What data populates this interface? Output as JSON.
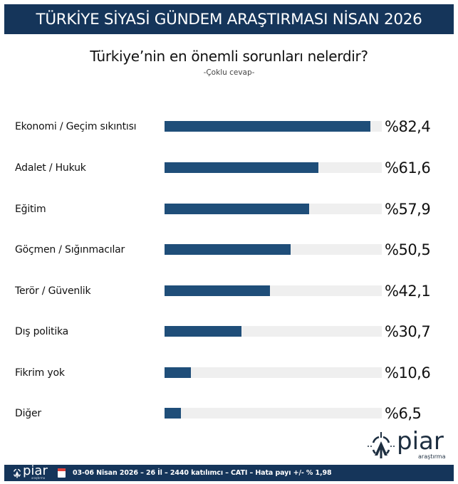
{
  "header": {
    "title": "TÜRKİYE SİYASİ GÜNDEM ARAŞTIRMASI NİSAN 2026"
  },
  "question": {
    "title": "Türkiye’nin en önemli sorunları nelerdir?",
    "subtitle": "-Çoklu cevap-"
  },
  "colors": {
    "header_bg": "#15355a",
    "bar": "#1f4e79",
    "track": "#efefef"
  },
  "rows": [
    {
      "label": "Ekonomi / Geçim sıkıntısı",
      "value": 82.4,
      "display": "%82,4"
    },
    {
      "label": "Adalet / Hukuk",
      "value": 61.6,
      "display": "%61,6"
    },
    {
      "label": "Eğitim",
      "value": 57.9,
      "display": "%57,9"
    },
    {
      "label": "Göçmen / Sığınmacılar",
      "value": 50.5,
      "display": "%50,5"
    },
    {
      "label": "Terör / Güvenlik",
      "value": 42.1,
      "display": "%42,1"
    },
    {
      "label": "Dış politika",
      "value": 30.7,
      "display": "%30,7"
    },
    {
      "label": "Fikrim yok",
      "value": 10.6,
      "display": "%10,6"
    },
    {
      "label": "Diğer",
      "value": 6.5,
      "display": "%6,5"
    }
  ],
  "chart_data": {
    "type": "bar",
    "orientation": "horizontal",
    "title": "Türkiye’nin en önemli sorunları nelerdir?",
    "subtitle": "-Çoklu cevap-",
    "categories": [
      "Ekonomi / Geçim sıkıntısı",
      "Adalet / Hukuk",
      "Eğitim",
      "Göçmen / Sığınmacılar",
      "Terör / Güvenlik",
      "Dış politika",
      "Fikrim yok",
      "Diğer"
    ],
    "values": [
      82.4,
      61.6,
      57.9,
      50.5,
      42.1,
      30.7,
      10.6,
      6.5
    ],
    "value_labels": [
      "%82,4",
      "%61,6",
      "%57,9",
      "%50,5",
      "%42,1",
      "%30,7",
      "%10,6",
      "%6,5"
    ],
    "xlabel": "",
    "ylabel": "",
    "grid": false,
    "legend": null
  },
  "logo": {
    "word": "piar",
    "sub": "araştırma"
  },
  "footer": {
    "logo_word": "piar",
    "logo_sub": "araştırma",
    "icon": "calendar-icon",
    "text": "03-06 Nisan 2026 – 26 İl – 2440 katılımcı – CATI – Hata payı +/- % 1,98"
  }
}
